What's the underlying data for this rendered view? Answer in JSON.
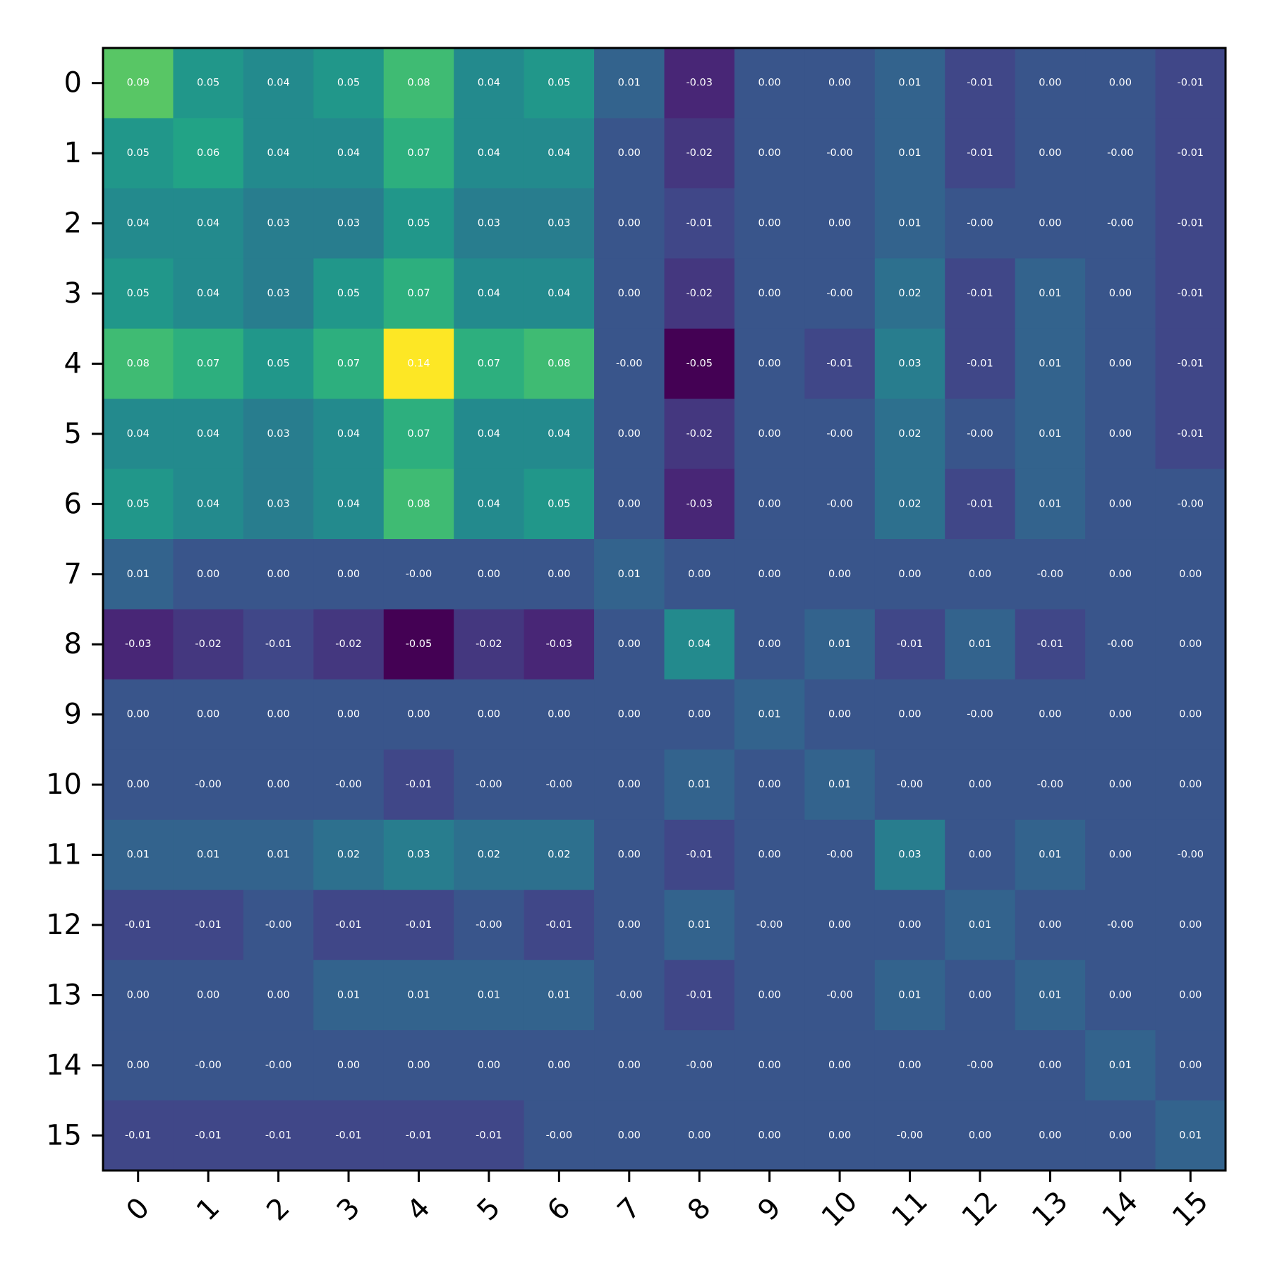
{
  "chart_data": {
    "type": "heatmap",
    "title": "",
    "xlabel": "",
    "ylabel": "",
    "colormap": "viridis",
    "vmin": -0.05,
    "vmax": 0.14,
    "grid": false,
    "x_tick_rotation_deg": 45,
    "x_categories": [
      "0",
      "1",
      "2",
      "3",
      "4",
      "5",
      "6",
      "7",
      "8",
      "9",
      "10",
      "11",
      "12",
      "13",
      "14",
      "15"
    ],
    "y_categories": [
      "0",
      "1",
      "2",
      "3",
      "4",
      "5",
      "6",
      "7",
      "8",
      "9",
      "10",
      "11",
      "12",
      "13",
      "14",
      "15"
    ],
    "cells": [
      [
        "0.09",
        "0.05",
        "0.04",
        "0.05",
        "0.08",
        "0.04",
        "0.05",
        "0.01",
        "-0.03",
        "0.00",
        "0.00",
        "0.01",
        "-0.01",
        "0.00",
        "0.00",
        "-0.01"
      ],
      [
        "0.05",
        "0.06",
        "0.04",
        "0.04",
        "0.07",
        "0.04",
        "0.04",
        "0.00",
        "-0.02",
        "0.00",
        "-0.00",
        "0.01",
        "-0.01",
        "0.00",
        "-0.00",
        "-0.01"
      ],
      [
        "0.04",
        "0.04",
        "0.03",
        "0.03",
        "0.05",
        "0.03",
        "0.03",
        "0.00",
        "-0.01",
        "0.00",
        "0.00",
        "0.01",
        "-0.00",
        "0.00",
        "-0.00",
        "-0.01"
      ],
      [
        "0.05",
        "0.04",
        "0.03",
        "0.05",
        "0.07",
        "0.04",
        "0.04",
        "0.00",
        "-0.02",
        "0.00",
        "-0.00",
        "0.02",
        "-0.01",
        "0.01",
        "0.00",
        "-0.01"
      ],
      [
        "0.08",
        "0.07",
        "0.05",
        "0.07",
        "0.14",
        "0.07",
        "0.08",
        "-0.00",
        "-0.05",
        "0.00",
        "-0.01",
        "0.03",
        "-0.01",
        "0.01",
        "0.00",
        "-0.01"
      ],
      [
        "0.04",
        "0.04",
        "0.03",
        "0.04",
        "0.07",
        "0.04",
        "0.04",
        "0.00",
        "-0.02",
        "0.00",
        "-0.00",
        "0.02",
        "-0.00",
        "0.01",
        "0.00",
        "-0.01"
      ],
      [
        "0.05",
        "0.04",
        "0.03",
        "0.04",
        "0.08",
        "0.04",
        "0.05",
        "0.00",
        "-0.03",
        "0.00",
        "-0.00",
        "0.02",
        "-0.01",
        "0.01",
        "0.00",
        "-0.00"
      ],
      [
        "0.01",
        "0.00",
        "0.00",
        "0.00",
        "-0.00",
        "0.00",
        "0.00",
        "0.01",
        "0.00",
        "0.00",
        "0.00",
        "0.00",
        "0.00",
        "-0.00",
        "0.00",
        "0.00"
      ],
      [
        "-0.03",
        "-0.02",
        "-0.01",
        "-0.02",
        "-0.05",
        "-0.02",
        "-0.03",
        "0.00",
        "0.04",
        "0.00",
        "0.01",
        "-0.01",
        "0.01",
        "-0.01",
        "-0.00",
        "0.00"
      ],
      [
        "0.00",
        "0.00",
        "0.00",
        "0.00",
        "0.00",
        "0.00",
        "0.00",
        "0.00",
        "0.00",
        "0.01",
        "0.00",
        "0.00",
        "-0.00",
        "0.00",
        "0.00",
        "0.00"
      ],
      [
        "0.00",
        "-0.00",
        "0.00",
        "-0.00",
        "-0.01",
        "-0.00",
        "-0.00",
        "0.00",
        "0.01",
        "0.00",
        "0.01",
        "-0.00",
        "0.00",
        "-0.00",
        "0.00",
        "0.00"
      ],
      [
        "0.01",
        "0.01",
        "0.01",
        "0.02",
        "0.03",
        "0.02",
        "0.02",
        "0.00",
        "-0.01",
        "0.00",
        "-0.00",
        "0.03",
        "0.00",
        "0.01",
        "0.00",
        "-0.00"
      ],
      [
        "-0.01",
        "-0.01",
        "-0.00",
        "-0.01",
        "-0.01",
        "-0.00",
        "-0.01",
        "0.00",
        "0.01",
        "-0.00",
        "0.00",
        "0.00",
        "0.01",
        "0.00",
        "-0.00",
        "0.00"
      ],
      [
        "0.00",
        "0.00",
        "0.00",
        "0.01",
        "0.01",
        "0.01",
        "0.01",
        "-0.00",
        "-0.01",
        "0.00",
        "-0.00",
        "0.01",
        "0.00",
        "0.01",
        "0.00",
        "0.00"
      ],
      [
        "0.00",
        "-0.00",
        "-0.00",
        "0.00",
        "0.00",
        "0.00",
        "0.00",
        "0.00",
        "-0.00",
        "0.00",
        "0.00",
        "0.00",
        "-0.00",
        "0.00",
        "0.01",
        "0.00"
      ],
      [
        "-0.01",
        "-0.01",
        "-0.01",
        "-0.01",
        "-0.01",
        "-0.01",
        "-0.00",
        "0.00",
        "0.00",
        "0.00",
        "0.00",
        "-0.00",
        "0.00",
        "0.00",
        "0.00",
        "0.01"
      ]
    ]
  }
}
